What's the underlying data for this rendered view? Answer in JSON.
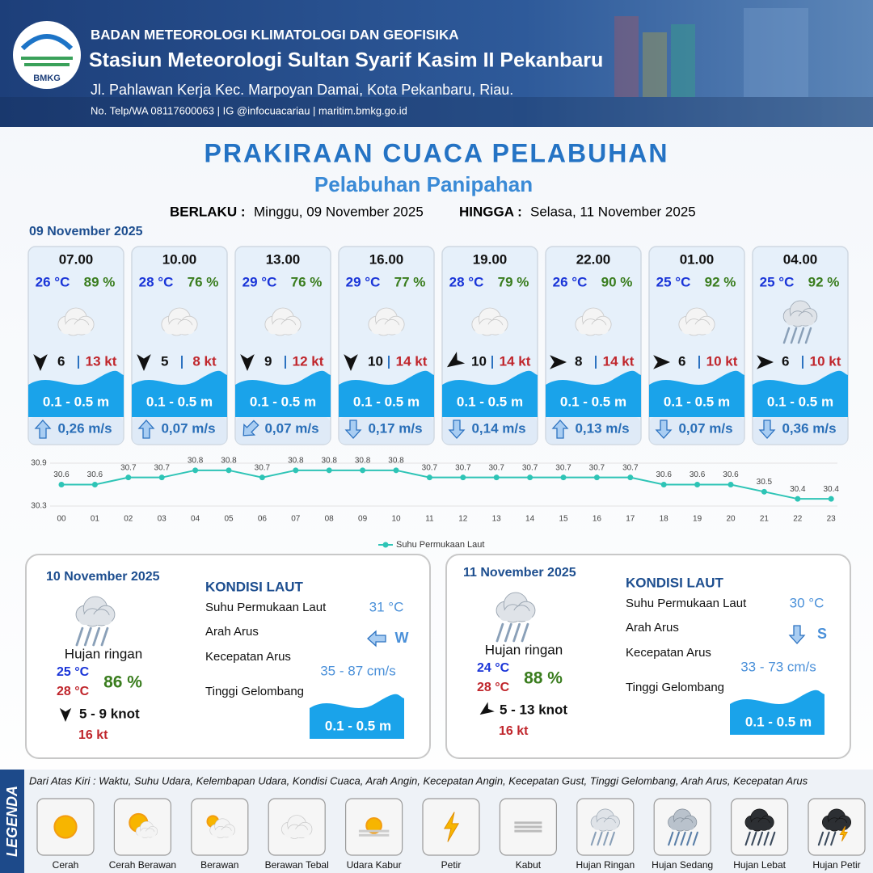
{
  "header": {
    "logo": "BMKG",
    "org": "BADAN METEOROLOGI KLIMATOLOGI DAN GEOFISIKA",
    "station": "Stasiun Meteorologi Sultan Syarif Kasim II Pekanbaru",
    "address": "Jl. Pahlawan Kerja Kec. Marpoyan Damai, Kota Pekanbaru, Riau.",
    "contact": "No. Telp/WA 08117600063 | IG @infocuacariau | maritim.bmkg.go.id"
  },
  "title": "PRAKIRAAN CUACA PELABUHAN",
  "subtitle": "Pelabuhan Panipahan",
  "validity": {
    "from_label": "BERLAKU :",
    "from": "Minggu, 09 November 2025",
    "to_label": "HINGGA :",
    "to": "Selasa, 11 November 2025"
  },
  "day1": {
    "date": "09 November 2025",
    "cards": [
      {
        "time": "07.00",
        "temp": "26 °C",
        "humidity": "89 %",
        "wind": 6,
        "gust": "13 kt",
        "wave": "0.1 - 0.5 m",
        "current": "0,26 m/s"
      },
      {
        "time": "10.00",
        "temp": "28 °C",
        "humidity": "76 %",
        "wind": 5,
        "gust": "8 kt",
        "wave": "0.1 - 0.5 m",
        "current": "0,07 m/s"
      },
      {
        "time": "13.00",
        "temp": "29 °C",
        "humidity": "76 %",
        "wind": 9,
        "gust": "12 kt",
        "wave": "0.1 - 0.5 m",
        "current": "0,07 m/s"
      },
      {
        "time": "16.00",
        "temp": "29 °C",
        "humidity": "77 %",
        "wind": 10,
        "gust": "14 kt",
        "wave": "0.1 - 0.5 m",
        "current": "0,17 m/s"
      },
      {
        "time": "19.00",
        "temp": "28 °C",
        "humidity": "79 %",
        "wind": 10,
        "gust": "14 kt",
        "wave": "0.1 - 0.5 m",
        "current": "0,14 m/s"
      },
      {
        "time": "22.00",
        "temp": "26 °C",
        "humidity": "90 %",
        "wind": 8,
        "gust": "14 kt",
        "wave": "0.1 - 0.5 m",
        "current": "0,13 m/s"
      },
      {
        "time": "01.00",
        "temp": "25 °C",
        "humidity": "92 %",
        "wind": 6,
        "gust": "10 kt",
        "wave": "0.1 - 0.5 m",
        "current": "0,07 m/s"
      },
      {
        "time": "04.00",
        "temp": "25 °C",
        "humidity": "92 %",
        "wind": 6,
        "gust": "10 kt",
        "wave": "0.1 - 0.5 m",
        "current": "0,36 m/s"
      }
    ]
  },
  "chart_data": {
    "type": "line",
    "x": [
      "00",
      "01",
      "02",
      "03",
      "04",
      "05",
      "06",
      "07",
      "08",
      "09",
      "10",
      "11",
      "12",
      "13",
      "14",
      "15",
      "16",
      "17",
      "18",
      "19",
      "20",
      "21",
      "22",
      "23"
    ],
    "series": [
      {
        "name": "Suhu Permukaan Laut",
        "color": "#2ec4b6",
        "values": [
          30.6,
          30.6,
          30.7,
          30.7,
          30.8,
          30.8,
          30.7,
          30.8,
          30.8,
          30.8,
          30.8,
          30.7,
          30.7,
          30.7,
          30.7,
          30.7,
          30.7,
          30.7,
          30.6,
          30.6,
          30.6,
          30.5,
          30.4,
          30.4
        ]
      }
    ],
    "ylim": [
      30.3,
      30.9
    ],
    "yticks": [
      30.3,
      30.9
    ]
  },
  "days": [
    {
      "date": "10 November 2025",
      "condition": "Hujan ringan",
      "temp_min": "25 °C",
      "temp_max": "28 °C",
      "humidity": "86 %",
      "wind": "5 - 9 knot",
      "gust": "16 kt",
      "sea_title": "KONDISI LAUT",
      "sst_label": "Suhu Permukaan Laut",
      "sst": "31 °C",
      "dir_label": "Arah Arus",
      "dir": "W",
      "speed_label": "Kecepatan Arus",
      "speed": "35 - 87 cm/s",
      "wave_label": "Tinggi Gelombang",
      "wave": "0.1 - 0.5 m"
    },
    {
      "date": "11 November 2025",
      "condition": "Hujan ringan",
      "temp_min": "24 °C",
      "temp_max": "28 °C",
      "humidity": "88 %",
      "wind": "5 - 13 knot",
      "gust": "16 kt",
      "sea_title": "KONDISI LAUT",
      "sst_label": "Suhu Permukaan Laut",
      "sst": "30 °C",
      "dir_label": "Arah Arus",
      "dir": "S",
      "speed_label": "Kecepatan Arus",
      "speed": "33 - 73 cm/s",
      "wave_label": "Tinggi Gelombang",
      "wave": "0.1 - 0.5 m"
    }
  ],
  "legend": {
    "title": "LEGENDA",
    "description": "Dari Atas Kiri : Waktu, Suhu Udara, Kelembapan Udara, Kondisi Cuaca, Arah Angin, Kecepatan Angin, Kecepatan Gust, Tinggi Gelombang, Arah Arus, Kecepatan Arus",
    "items": [
      "Cerah",
      "Cerah Berawan",
      "Berawan",
      "Berawan Tebal",
      "Udara Kabur",
      "Petir",
      "Kabut",
      "Hujan Ringan",
      "Hujan Sedang",
      "Hujan Lebat",
      "Hujan Petir"
    ]
  }
}
